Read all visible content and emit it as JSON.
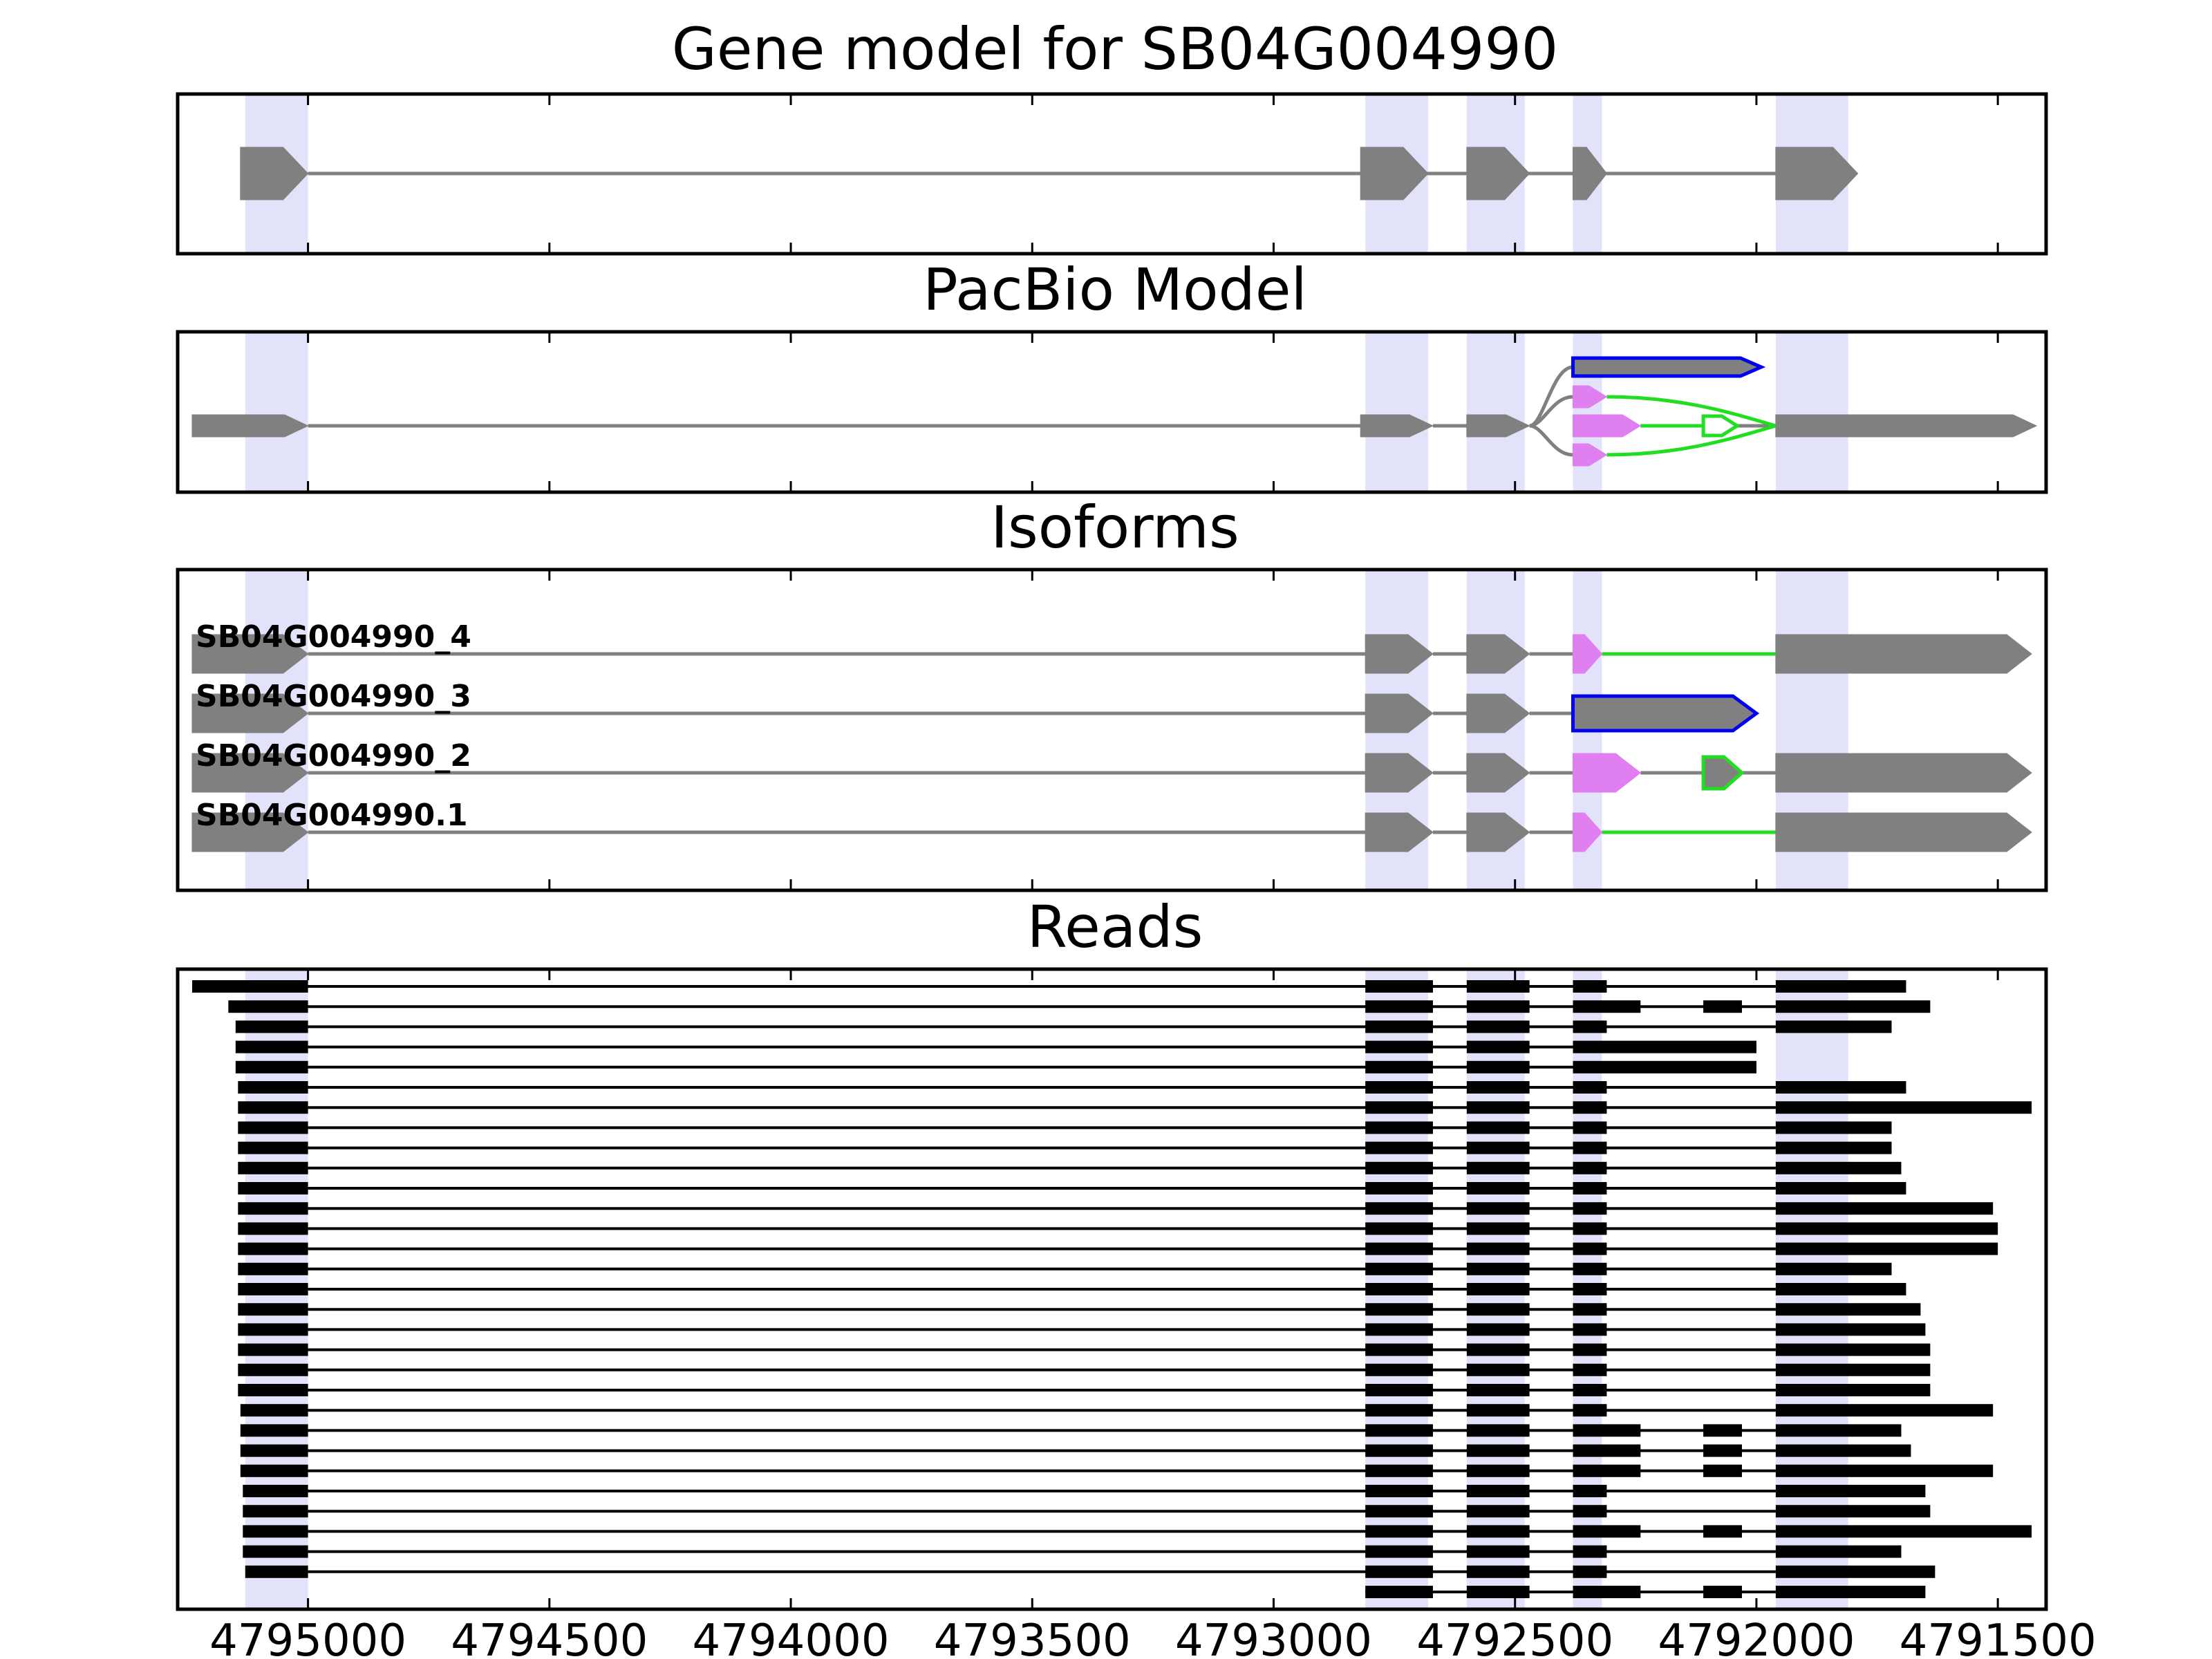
{
  "title": "Gene model for SB04G004990",
  "panels": {
    "gene_model": {
      "title": "Gene model for SB04G004990"
    },
    "pacbio": {
      "title": "PacBio Model"
    },
    "isoforms": {
      "title": "Isoforms"
    },
    "reads": {
      "title": "Reads"
    }
  },
  "colors": {
    "exon": "#808080",
    "alt_exon_pink": "#e07ff0",
    "alt_exon_green": "#22dd22",
    "alt_exon_blue": "#0000ee",
    "highlight": "#d8d8fa",
    "read": "#000000"
  },
  "chart_data": {
    "type": "gene-structure",
    "x_axis": {
      "range": [
        4795270,
        4791400
      ],
      "reversed": true,
      "ticks": [
        4795000,
        4794500,
        4794000,
        4793500,
        4793000,
        4792500,
        4792000,
        4791500
      ],
      "tick_labels": [
        "4795000",
        "4794500",
        "4794000",
        "4793500",
        "4793000",
        "4792500",
        "4792000",
        "4791500"
      ]
    },
    "highlighted_exons": [
      [
        4795130,
        4795000
      ],
      [
        4792810,
        4792680
      ],
      [
        4792600,
        4792480
      ],
      [
        4792380,
        4792320
      ],
      [
        4791960,
        4791810
      ]
    ],
    "gene_model": {
      "exons": [
        [
          4795140,
          4795000
        ],
        [
          4792820,
          4792680
        ],
        [
          4792600,
          4792470
        ],
        [
          4792380,
          4792310
        ],
        [
          4791960,
          4791790
        ]
      ]
    },
    "pacbio_model": {
      "main_exons": [
        [
          4795240,
          4795000
        ],
        [
          4792820,
          4792670
        ],
        [
          4792600,
          4792470
        ],
        [
          4791960,
          4791420
        ]
      ],
      "alt_exons": [
        {
          "coords": [
            4792380,
            4791990
          ],
          "color": "blue",
          "lane": -1
        },
        {
          "coords": [
            4792380,
            4792310
          ],
          "color": "pink",
          "lane": -0.5
        },
        {
          "coords": [
            4792380,
            4792240
          ],
          "color": "pink",
          "lane": 0
        },
        {
          "coords": [
            4792110,
            4792040
          ],
          "color": "green",
          "lane": 0
        },
        {
          "coords": [
            4792380,
            4792310
          ],
          "color": "pink",
          "lane": 0.5
        }
      ]
    },
    "isoforms": [
      {
        "name": "SB04G004990_4",
        "exons": [
          [
            4795240,
            4795000,
            "gray"
          ],
          [
            4792810,
            4792670,
            "gray"
          ],
          [
            4792600,
            4792470,
            "gray"
          ],
          [
            4792380,
            4792320,
            "pink"
          ],
          [
            4791960,
            4791430,
            "gray"
          ]
        ],
        "introns": [
          [
            4795000,
            4792810,
            "gray"
          ],
          [
            4792670,
            4792600,
            "gray"
          ],
          [
            4792470,
            4792380,
            "gray"
          ],
          [
            4792320,
            4791960,
            "green"
          ]
        ]
      },
      {
        "name": "SB04G004990_3",
        "exons": [
          [
            4795240,
            4795000,
            "gray"
          ],
          [
            4792810,
            4792670,
            "gray"
          ],
          [
            4792600,
            4792470,
            "gray"
          ],
          [
            4792380,
            4792000,
            "blue"
          ]
        ],
        "introns": [
          [
            4795000,
            4792810,
            "gray"
          ],
          [
            4792670,
            4792600,
            "gray"
          ],
          [
            4792470,
            4792380,
            "gray"
          ]
        ]
      },
      {
        "name": "SB04G004990_2",
        "exons": [
          [
            4795240,
            4795000,
            "gray"
          ],
          [
            4792810,
            4792670,
            "gray"
          ],
          [
            4792600,
            4792470,
            "gray"
          ],
          [
            4792380,
            4792240,
            "pink"
          ],
          [
            4792110,
            4792030,
            "green"
          ],
          [
            4791960,
            4791430,
            "gray"
          ]
        ],
        "introns": [
          [
            4795000,
            4792810,
            "gray"
          ],
          [
            4792670,
            4792600,
            "gray"
          ],
          [
            4792470,
            4792380,
            "gray"
          ],
          [
            4792240,
            4792110,
            "gray"
          ],
          [
            4792030,
            4791960,
            "gray"
          ]
        ]
      },
      {
        "name": "SB04G004990.1",
        "exons": [
          [
            4795240,
            4795000,
            "gray"
          ],
          [
            4792810,
            4792670,
            "gray"
          ],
          [
            4792600,
            4792470,
            "gray"
          ],
          [
            4792380,
            4792320,
            "pink"
          ],
          [
            4791960,
            4791430,
            "gray"
          ]
        ],
        "introns": [
          [
            4795000,
            4792810,
            "gray"
          ],
          [
            4792670,
            4792600,
            "gray"
          ],
          [
            4792470,
            4792380,
            "gray"
          ],
          [
            4792320,
            4791960,
            "green"
          ]
        ]
      }
    ],
    "reads": [
      {
        "start": 4795240,
        "ex4_end": 4792310,
        "ex5_end": 4791690
      },
      {
        "start": 4795165,
        "ex4_end": 4792240,
        "mid": [
          4792110,
          4792030
        ],
        "ex5_end": 4791640
      },
      {
        "start": 4795150,
        "ex4_end": 4792310,
        "ex5_end": 4791720
      },
      {
        "start": 4795150,
        "ex4_end": 4792000
      },
      {
        "start": 4795150,
        "ex4_end": 4792000
      },
      {
        "start": 4795145,
        "ex4_end": 4792310,
        "ex5_end": 4791690
      },
      {
        "start": 4795145,
        "ex4_end": 4792310,
        "ex5_end": 4791430
      },
      {
        "start": 4795145,
        "ex4_end": 4792310,
        "ex5_end": 4791720
      },
      {
        "start": 4795145,
        "ex4_end": 4792310,
        "ex5_end": 4791720
      },
      {
        "start": 4795145,
        "ex4_end": 4792310,
        "ex5_end": 4791700
      },
      {
        "start": 4795145,
        "ex4_end": 4792310,
        "ex5_end": 4791690
      },
      {
        "start": 4795145,
        "ex4_end": 4792310,
        "ex5_end": 4791510
      },
      {
        "start": 4795145,
        "ex4_end": 4792310,
        "ex5_end": 4791500
      },
      {
        "start": 4795145,
        "ex4_end": 4792310,
        "ex5_end": 4791500
      },
      {
        "start": 4795145,
        "ex4_end": 4792310,
        "ex5_end": 4791720
      },
      {
        "start": 4795145,
        "ex4_end": 4792310,
        "ex5_end": 4791690
      },
      {
        "start": 4795145,
        "ex4_end": 4792310,
        "ex5_end": 4791660
      },
      {
        "start": 4795145,
        "ex4_end": 4792310,
        "ex5_end": 4791650
      },
      {
        "start": 4795145,
        "ex4_end": 4792310,
        "ex5_end": 4791640
      },
      {
        "start": 4795145,
        "ex4_end": 4792310,
        "ex5_end": 4791640
      },
      {
        "start": 4795145,
        "ex4_end": 4792310,
        "ex5_end": 4791640
      },
      {
        "start": 4795140,
        "ex4_end": 4792310,
        "ex5_end": 4791510
      },
      {
        "start": 4795140,
        "ex4_end": 4792240,
        "mid": [
          4792110,
          4792030
        ],
        "ex5_end": 4791700
      },
      {
        "start": 4795140,
        "ex4_end": 4792240,
        "mid": [
          4792110,
          4792030
        ],
        "ex5_end": 4791680
      },
      {
        "start": 4795140,
        "ex4_end": 4792240,
        "mid": [
          4792110,
          4792030
        ],
        "ex5_end": 4791510
      },
      {
        "start": 4795135,
        "ex4_end": 4792310,
        "ex5_end": 4791650
      },
      {
        "start": 4795135,
        "ex4_end": 4792310,
        "ex5_end": 4791640
      },
      {
        "start": 4795135,
        "ex4_end": 4792240,
        "mid": [
          4792110,
          4792030
        ],
        "ex5_end": 4791430
      },
      {
        "start": 4795135,
        "ex4_end": 4792310,
        "ex5_end": 4791700
      },
      {
        "start": 4795130,
        "ex4_end": 4792310,
        "ex5_end": 4791630
      },
      {
        "start": 4792810,
        "ex4_end": 4792240,
        "mid": [
          4792110,
          4792030
        ],
        "ex5_end": 4791650
      }
    ]
  }
}
